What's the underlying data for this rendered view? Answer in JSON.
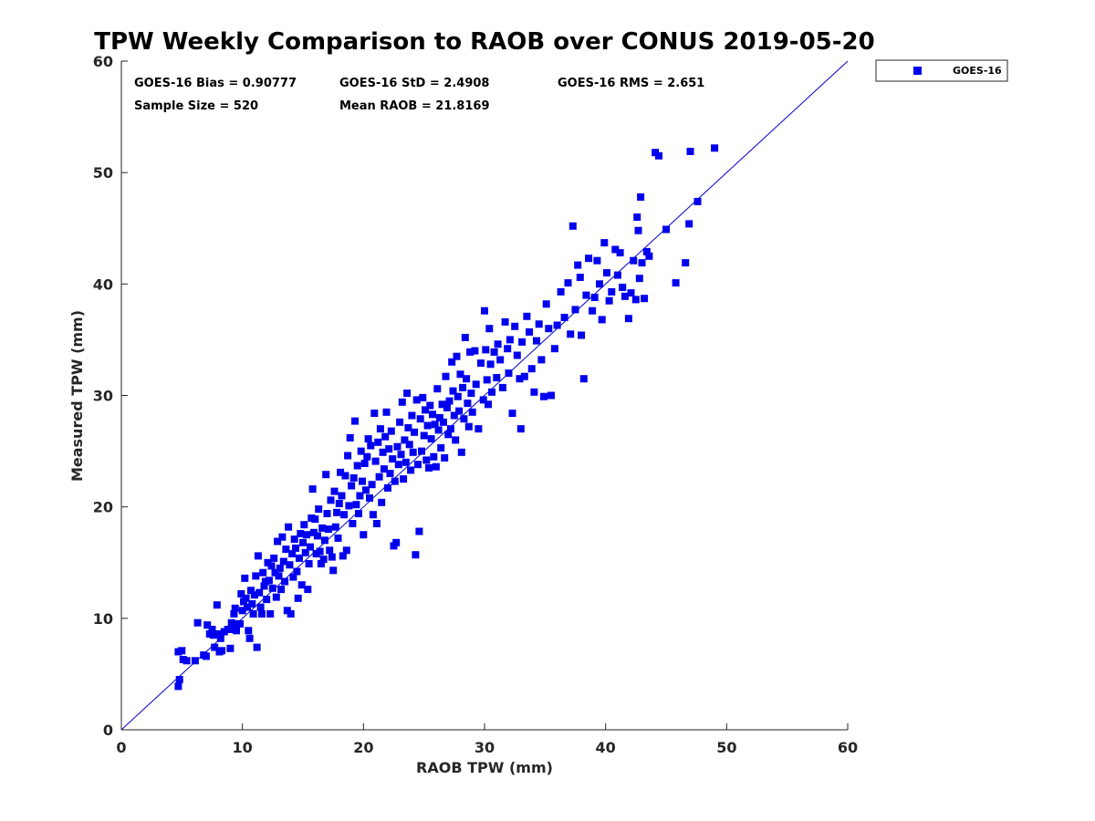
{
  "chart_data": {
    "type": "scatter",
    "title": "TPW Weekly Comparison to RAOB over CONUS 2019-05-20",
    "xlabel": "RAOB TPW (mm)",
    "ylabel": "Measured TPW (mm)",
    "xlim": [
      0,
      60
    ],
    "ylim": [
      0,
      60
    ],
    "xticks": [
      "0",
      "10",
      "20",
      "30",
      "40",
      "50",
      "60"
    ],
    "yticks": [
      "0",
      "10",
      "20",
      "30",
      "40",
      "50",
      "60"
    ],
    "grid": false,
    "legend_position": "outside-top-right",
    "colors": {
      "marker": "#0000ee",
      "line": "#0000cc",
      "axis": "#262626"
    },
    "stats": {
      "bias": "GOES-16 Bias = 0.90777",
      "std": "GOES-16 StD = 2.4908",
      "rms": "GOES-16 RMS = 2.651",
      "sample": "Sample Size = 520",
      "mean": "Mean RAOB = 21.8169"
    },
    "reference_line": {
      "name": "1:1 line",
      "x": [
        0,
        60
      ],
      "y": [
        0,
        60
      ]
    },
    "series": [
      {
        "name": "GOES-16",
        "marker": "square",
        "points": [
          [
            4.7,
            3.9
          ],
          [
            4.8,
            4.5
          ],
          [
            4.7,
            7.0
          ],
          [
            5.0,
            7.1
          ],
          [
            5.1,
            6.3
          ],
          [
            5.4,
            6.2
          ],
          [
            6.1,
            6.2
          ],
          [
            6.3,
            9.6
          ],
          [
            6.8,
            6.7
          ],
          [
            7.0,
            6.6
          ],
          [
            7.1,
            9.4
          ],
          [
            7.3,
            8.6
          ],
          [
            7.5,
            9.0
          ],
          [
            7.6,
            8.5
          ],
          [
            7.7,
            7.4
          ],
          [
            7.9,
            11.2
          ],
          [
            8.0,
            8.6
          ],
          [
            8.1,
            7.0
          ],
          [
            8.2,
            8.2
          ],
          [
            8.3,
            7.1
          ],
          [
            8.5,
            8.8
          ],
          [
            8.8,
            9.0
          ],
          [
            9.0,
            7.3
          ],
          [
            9.1,
            9.6
          ],
          [
            9.2,
            9.0
          ],
          [
            9.3,
            10.4
          ],
          [
            9.4,
            10.9
          ],
          [
            9.5,
            8.9
          ],
          [
            9.6,
            9.5
          ],
          [
            9.8,
            9.5
          ],
          [
            9.9,
            12.2
          ],
          [
            10.0,
            10.7
          ],
          [
            10.1,
            11.5
          ],
          [
            10.2,
            13.6
          ],
          [
            10.3,
            11.8
          ],
          [
            10.4,
            11.0
          ],
          [
            10.5,
            8.9
          ],
          [
            10.6,
            8.2
          ],
          [
            10.7,
            12.5
          ],
          [
            10.8,
            11.3
          ],
          [
            10.9,
            10.4
          ],
          [
            11.0,
            12.1
          ],
          [
            11.1,
            13.8
          ],
          [
            11.2,
            7.4
          ],
          [
            11.3,
            15.6
          ],
          [
            11.4,
            12.3
          ],
          [
            11.5,
            11.0
          ],
          [
            11.6,
            10.4
          ],
          [
            11.7,
            14.1
          ],
          [
            11.8,
            12.9
          ],
          [
            11.9,
            13.3
          ],
          [
            12.0,
            11.7
          ],
          [
            12.1,
            15.0
          ],
          [
            12.2,
            13.4
          ],
          [
            12.3,
            10.4
          ],
          [
            12.4,
            14.7
          ],
          [
            12.5,
            12.7
          ],
          [
            12.6,
            15.4
          ],
          [
            12.7,
            14.1
          ],
          [
            12.8,
            11.9
          ],
          [
            12.9,
            16.9
          ],
          [
            13.0,
            13.8
          ],
          [
            13.1,
            14.5
          ],
          [
            13.2,
            12.6
          ],
          [
            13.3,
            17.3
          ],
          [
            13.4,
            15.1
          ],
          [
            13.5,
            13.3
          ],
          [
            13.6,
            16.2
          ],
          [
            13.7,
            10.7
          ],
          [
            13.8,
            18.2
          ],
          [
            13.9,
            14.8
          ],
          [
            14.0,
            10.4
          ],
          [
            14.1,
            15.8
          ],
          [
            14.2,
            13.7
          ],
          [
            14.3,
            17.1
          ],
          [
            14.4,
            16.3
          ],
          [
            14.5,
            14.2
          ],
          [
            14.6,
            11.8
          ],
          [
            14.7,
            15.4
          ],
          [
            14.8,
            17.6
          ],
          [
            14.9,
            13.0
          ],
          [
            15.0,
            16.8
          ],
          [
            15.1,
            18.4
          ],
          [
            15.2,
            15.9
          ],
          [
            15.3,
            17.5
          ],
          [
            15.4,
            12.6
          ],
          [
            15.5,
            14.9
          ],
          [
            15.6,
            16.4
          ],
          [
            15.7,
            19.0
          ],
          [
            15.8,
            21.6
          ],
          [
            15.9,
            17.7
          ],
          [
            16.0,
            18.9
          ],
          [
            16.1,
            15.8
          ],
          [
            16.2,
            17.4
          ],
          [
            16.3,
            19.8
          ],
          [
            16.4,
            16.0
          ],
          [
            16.5,
            14.9
          ],
          [
            16.6,
            18.1
          ],
          [
            16.7,
            15.3
          ],
          [
            16.8,
            17.0
          ],
          [
            16.9,
            22.9
          ],
          [
            17.0,
            19.4
          ],
          [
            17.1,
            18.0
          ],
          [
            17.2,
            16.1
          ],
          [
            17.3,
            20.6
          ],
          [
            17.4,
            15.5
          ],
          [
            17.5,
            14.3
          ],
          [
            17.6,
            21.4
          ],
          [
            17.7,
            18.2
          ],
          [
            17.8,
            19.5
          ],
          [
            17.9,
            17.2
          ],
          [
            18.0,
            20.3
          ],
          [
            18.1,
            23.1
          ],
          [
            18.2,
            21.0
          ],
          [
            18.3,
            15.6
          ],
          [
            18.4,
            19.3
          ],
          [
            18.5,
            22.8
          ],
          [
            18.6,
            16.1
          ],
          [
            18.7,
            24.6
          ],
          [
            18.8,
            20.1
          ],
          [
            18.9,
            26.2
          ],
          [
            19.0,
            21.9
          ],
          [
            19.1,
            18.5
          ],
          [
            19.2,
            22.6
          ],
          [
            19.3,
            27.7
          ],
          [
            19.4,
            20.2
          ],
          [
            19.5,
            23.7
          ],
          [
            19.6,
            19.4
          ],
          [
            19.7,
            21.0
          ],
          [
            19.8,
            25.0
          ],
          [
            19.9,
            22.3
          ],
          [
            20.0,
            17.5
          ],
          [
            20.1,
            23.9
          ],
          [
            20.2,
            21.5
          ],
          [
            20.3,
            24.5
          ],
          [
            20.4,
            26.1
          ],
          [
            20.5,
            20.8
          ],
          [
            20.6,
            25.5
          ],
          [
            20.7,
            22.0
          ],
          [
            20.8,
            19.3
          ],
          [
            20.9,
            28.4
          ],
          [
            21.0,
            24.1
          ],
          [
            21.1,
            18.5
          ],
          [
            21.2,
            25.8
          ],
          [
            21.3,
            22.7
          ],
          [
            21.4,
            27.0
          ],
          [
            21.5,
            20.4
          ],
          [
            21.6,
            24.9
          ],
          [
            21.7,
            23.4
          ],
          [
            21.8,
            26.3
          ],
          [
            21.9,
            28.5
          ],
          [
            22.0,
            21.7
          ],
          [
            22.1,
            25.2
          ],
          [
            22.2,
            23.0
          ],
          [
            22.3,
            26.8
          ],
          [
            22.4,
            24.3
          ],
          [
            22.5,
            16.5
          ],
          [
            22.6,
            22.3
          ],
          [
            22.7,
            16.8
          ],
          [
            22.8,
            25.4
          ],
          [
            22.9,
            23.8
          ],
          [
            23.0,
            27.6
          ],
          [
            23.1,
            24.7
          ],
          [
            23.2,
            29.4
          ],
          [
            23.3,
            22.5
          ],
          [
            23.4,
            26.0
          ],
          [
            23.5,
            24.0
          ],
          [
            23.6,
            30.2
          ],
          [
            23.7,
            27.1
          ],
          [
            23.8,
            25.6
          ],
          [
            23.9,
            23.3
          ],
          [
            24.0,
            28.2
          ],
          [
            24.1,
            24.9
          ],
          [
            24.2,
            26.7
          ],
          [
            24.3,
            15.7
          ],
          [
            24.4,
            29.6
          ],
          [
            24.5,
            23.8
          ],
          [
            24.6,
            17.8
          ],
          [
            24.7,
            27.9
          ],
          [
            24.8,
            25.0
          ],
          [
            24.9,
            29.8
          ],
          [
            25.0,
            26.4
          ],
          [
            25.1,
            28.7
          ],
          [
            25.2,
            24.2
          ],
          [
            25.3,
            27.3
          ],
          [
            25.4,
            23.5
          ],
          [
            25.5,
            29.1
          ],
          [
            25.6,
            26.1
          ],
          [
            25.7,
            28.3
          ],
          [
            25.8,
            24.5
          ],
          [
            25.9,
            27.4
          ],
          [
            26.0,
            23.6
          ],
          [
            26.1,
            30.6
          ],
          [
            26.2,
            26.9
          ],
          [
            26.3,
            28.0
          ],
          [
            26.4,
            25.3
          ],
          [
            26.5,
            29.2
          ],
          [
            26.6,
            27.6
          ],
          [
            26.7,
            24.4
          ],
          [
            26.8,
            31.7
          ],
          [
            26.9,
            28.9
          ],
          [
            27.0,
            26.5
          ],
          [
            27.1,
            29.5
          ],
          [
            27.2,
            27.0
          ],
          [
            27.3,
            33.0
          ],
          [
            27.4,
            30.4
          ],
          [
            27.5,
            28.2
          ],
          [
            27.6,
            26.0
          ],
          [
            27.7,
            33.5
          ],
          [
            27.8,
            29.9
          ],
          [
            27.9,
            28.6
          ],
          [
            28.0,
            31.9
          ],
          [
            28.1,
            24.9
          ],
          [
            28.2,
            30.7
          ],
          [
            28.3,
            27.9
          ],
          [
            28.4,
            35.2
          ],
          [
            28.5,
            31.5
          ],
          [
            28.6,
            29.3
          ],
          [
            28.7,
            27.2
          ],
          [
            28.8,
            33.9
          ],
          [
            28.9,
            30.2
          ],
          [
            29.0,
            28.5
          ],
          [
            29.2,
            34.0
          ],
          [
            29.3,
            31.0
          ],
          [
            29.5,
            27.0
          ],
          [
            29.7,
            32.9
          ],
          [
            29.9,
            29.6
          ],
          [
            30.0,
            37.6
          ],
          [
            30.1,
            34.1
          ],
          [
            30.2,
            31.4
          ],
          [
            30.3,
            29.2
          ],
          [
            30.4,
            36.0
          ],
          [
            30.5,
            32.8
          ],
          [
            30.6,
            30.3
          ],
          [
            30.8,
            33.9
          ],
          [
            31.0,
            31.6
          ],
          [
            31.1,
            34.6
          ],
          [
            31.3,
            33.2
          ],
          [
            31.5,
            30.7
          ],
          [
            31.7,
            36.6
          ],
          [
            31.9,
            34.2
          ],
          [
            32.0,
            32.0
          ],
          [
            32.1,
            35.0
          ],
          [
            32.3,
            28.4
          ],
          [
            32.5,
            36.2
          ],
          [
            32.7,
            33.6
          ],
          [
            32.9,
            31.5
          ],
          [
            33.0,
            27.0
          ],
          [
            33.1,
            34.8
          ],
          [
            33.3,
            31.7
          ],
          [
            33.5,
            37.1
          ],
          [
            33.7,
            35.7
          ],
          [
            33.9,
            32.4
          ],
          [
            34.1,
            30.3
          ],
          [
            34.3,
            34.9
          ],
          [
            34.5,
            36.4
          ],
          [
            34.7,
            33.2
          ],
          [
            34.9,
            29.9
          ],
          [
            35.1,
            38.2
          ],
          [
            35.3,
            36.0
          ],
          [
            35.5,
            30.0
          ],
          [
            35.8,
            34.2
          ],
          [
            36.0,
            36.3
          ],
          [
            36.3,
            39.3
          ],
          [
            36.6,
            37.0
          ],
          [
            36.9,
            40.1
          ],
          [
            37.1,
            35.5
          ],
          [
            37.3,
            45.2
          ],
          [
            37.5,
            37.7
          ],
          [
            37.7,
            41.7
          ],
          [
            37.9,
            40.6
          ],
          [
            38.0,
            35.4
          ],
          [
            38.2,
            31.5
          ],
          [
            38.4,
            39.0
          ],
          [
            38.6,
            42.3
          ],
          [
            38.9,
            37.6
          ],
          [
            39.1,
            38.8
          ],
          [
            39.3,
            42.1
          ],
          [
            39.5,
            40.0
          ],
          [
            39.7,
            36.8
          ],
          [
            39.9,
            43.7
          ],
          [
            40.1,
            41.0
          ],
          [
            40.3,
            38.5
          ],
          [
            40.5,
            39.3
          ],
          [
            40.8,
            43.1
          ],
          [
            41.0,
            40.8
          ],
          [
            41.2,
            42.8
          ],
          [
            41.4,
            39.7
          ],
          [
            41.6,
            38.9
          ],
          [
            41.9,
            36.9
          ],
          [
            42.1,
            39.2
          ],
          [
            42.3,
            42.1
          ],
          [
            42.5,
            38.6
          ],
          [
            42.6,
            46.0
          ],
          [
            42.7,
            44.8
          ],
          [
            42.8,
            40.5
          ],
          [
            42.9,
            47.8
          ],
          [
            43.0,
            41.9
          ],
          [
            43.2,
            38.7
          ],
          [
            43.4,
            42.9
          ],
          [
            43.6,
            42.5
          ],
          [
            44.1,
            51.8
          ],
          [
            44.4,
            51.5
          ],
          [
            45.0,
            44.9
          ],
          [
            45.8,
            40.1
          ],
          [
            46.6,
            41.9
          ],
          [
            46.9,
            45.4
          ],
          [
            47.0,
            51.9
          ],
          [
            47.6,
            47.4
          ],
          [
            49.0,
            52.2
          ]
        ]
      }
    ]
  }
}
